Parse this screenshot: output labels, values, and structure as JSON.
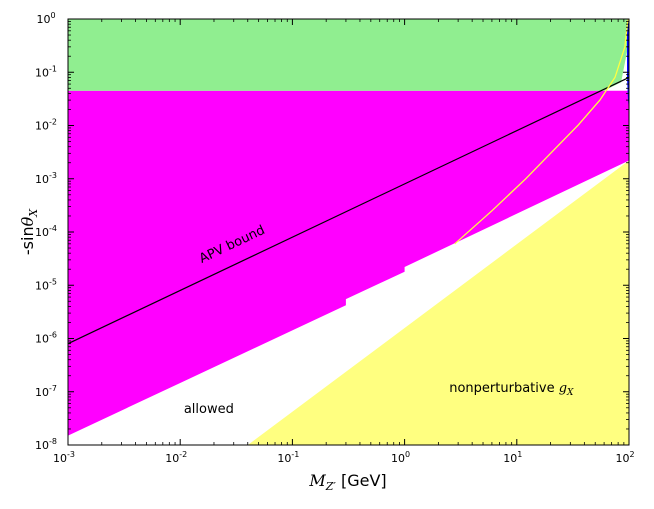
{
  "chart_data": {
    "type": "area",
    "title": "",
    "xlabel": {
      "base": "M",
      "subscript": "Z′",
      "unit": " [GeV]"
    },
    "ylabel": {
      "prefix": "-sin",
      "theta": "θ",
      "subscript": "X"
    },
    "x_scale": "log",
    "y_scale": "log",
    "xlim": [
      0.001,
      100
    ],
    "ylim": [
      1e-08,
      1
    ],
    "grid": false,
    "x_ticks": [
      {
        "value": 0.001,
        "base": "10",
        "exp": "-3"
      },
      {
        "value": 0.01,
        "base": "10",
        "exp": "-2"
      },
      {
        "value": 0.1,
        "base": "10",
        "exp": "-1"
      },
      {
        "value": 1,
        "base": "10",
        "exp": "0"
      },
      {
        "value": 10,
        "base": "10",
        "exp": "1"
      },
      {
        "value": 100,
        "base": "10",
        "exp": "2"
      }
    ],
    "y_ticks": [
      {
        "value": 1e-08,
        "base": "10",
        "exp": "-8"
      },
      {
        "value": 1e-07,
        "base": "10",
        "exp": "-7"
      },
      {
        "value": 1e-06,
        "base": "10",
        "exp": "-6"
      },
      {
        "value": 1e-05,
        "base": "10",
        "exp": "-5"
      },
      {
        "value": 0.0001,
        "base": "10",
        "exp": "-4"
      },
      {
        "value": 0.001,
        "base": "10",
        "exp": "-3"
      },
      {
        "value": 0.01,
        "base": "10",
        "exp": "-2"
      },
      {
        "value": 0.1,
        "base": "10",
        "exp": "-1"
      },
      {
        "value": 1,
        "base": "10",
        "exp": "0"
      }
    ],
    "regions": [
      {
        "id": "magenta-excluded",
        "color": "#ff00ff",
        "points": [
          [
            0.001,
            1.5e-08
          ],
          [
            0.3,
            4.2e-06
          ],
          [
            0.3,
            5.5e-06
          ],
          [
            1.0,
            1.8e-05
          ],
          [
            1.0,
            2.2e-05
          ],
          [
            100,
            0.0022
          ],
          [
            100,
            0.045
          ],
          [
            0.001,
            0.045
          ]
        ]
      },
      {
        "id": "green-excluded",
        "color": "#90ee90",
        "points": [
          [
            0.001,
            0.045
          ],
          [
            60,
            0.045
          ],
          [
            85,
            0.065
          ],
          [
            98,
            0.3
          ],
          [
            100,
            1
          ],
          [
            0.001,
            1
          ]
        ]
      },
      {
        "id": "yellow-nonperturbative",
        "color": "#ffff80",
        "points": [
          [
            0.04,
            1e-08
          ],
          [
            100,
            0.0022
          ],
          [
            100,
            1e-08
          ]
        ]
      },
      {
        "id": "blue-excluded",
        "color": "#0000ff",
        "points": [
          [
            96,
            1
          ],
          [
            100,
            1
          ],
          [
            100,
            0.02
          ],
          [
            98,
            0.03
          ],
          [
            96,
            0.08
          ]
        ]
      }
    ],
    "lines": [
      {
        "name": "APV bound",
        "color": "#000000",
        "points": [
          [
            0.001,
            8e-07
          ],
          [
            100,
            0.08
          ]
        ]
      },
      {
        "id": "yellow-boundary",
        "color": "#ffff40",
        "points": [
          [
            2.8,
            6e-05
          ],
          [
            6,
            0.00025
          ],
          [
            12,
            0.001
          ],
          [
            20,
            0.003
          ],
          [
            35,
            0.01
          ],
          [
            55,
            0.03
          ],
          [
            75,
            0.08
          ],
          [
            92,
            0.3
          ],
          [
            98,
            1
          ]
        ]
      }
    ],
    "annotations": [
      {
        "text": "APV bound",
        "x": 0.03,
        "y": 5e-05,
        "rotation_follows": "APV bound"
      },
      {
        "text": "allowed",
        "x": 0.018,
        "y": 4e-08
      },
      {
        "text_prefix": "nonperturbative ",
        "var_base": "g",
        "var_sub": "X",
        "x": 2.5,
        "y": 1e-07
      }
    ]
  }
}
